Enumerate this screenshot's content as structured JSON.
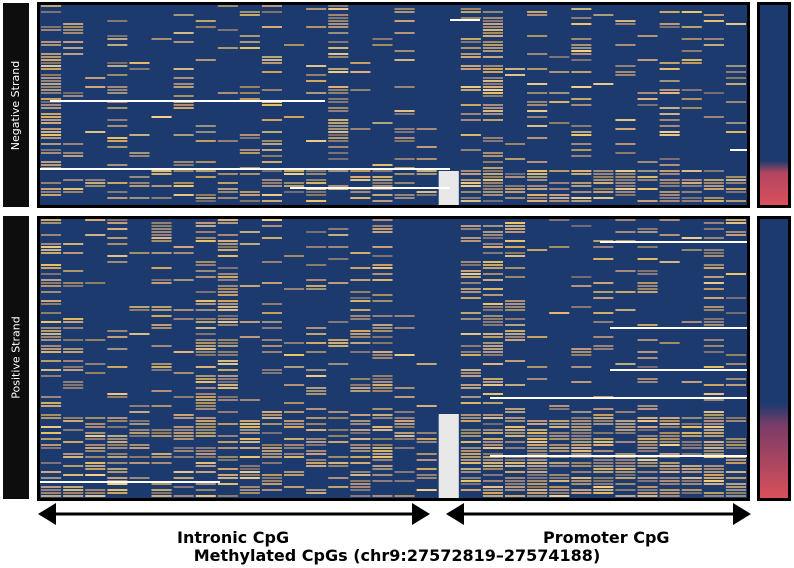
{
  "chart_data": {
    "type": "heatmap",
    "xlabel": "Methylated CpGs (chr9:27572819–27574188)",
    "panels": [
      {
        "name": "Negative Strand"
      },
      {
        "name": "Positive Strand"
      }
    ],
    "column_groups": [
      {
        "label": "Intronic CpG"
      },
      {
        "label": "Promoter CpG"
      }
    ],
    "colors": {
      "unmethylated": "#1c3a6e",
      "methylated": "#f3c768",
      "missing": "#ffffff",
      "sidebar_low": "#1c3a6e",
      "sidebar_high": "#d9505a"
    },
    "negative_cluster_fraction": 0.83,
    "positive_cluster_fraction": 0.7
  }
}
